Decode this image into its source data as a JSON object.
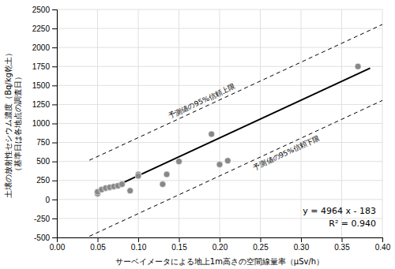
{
  "chart_data": {
    "type": "scatter",
    "xlabel": "サーベイメータによる地上1m高さの空間線量率（μSv/h）",
    "ylabel": "土壌の放射性セシウム濃度（Bq/kg乾土）\n（基準日は各地点の調査日）",
    "annotations": [
      "y = 4964 x - 183",
      "R² = 0.940",
      "予測値の95%信頼上限",
      "予測値の95%信頼下限"
    ],
    "series": [
      {
        "type": "scatter",
        "color": "#888888",
        "x": [
          0.05,
          0.05,
          0.055,
          0.06,
          0.065,
          0.07,
          0.075,
          0.08,
          0.09,
          0.1,
          0.1,
          0.13,
          0.135,
          0.15,
          0.19,
          0.2,
          0.21,
          0.37
        ],
        "values": [
          75,
          100,
          130,
          150,
          160,
          170,
          180,
          200,
          115,
          330,
          310,
          200,
          330,
          500,
          860,
          460,
          510,
          1750
        ]
      },
      {
        "type": "line",
        "color": "#000000",
        "line_style": "solid",
        "x": [
          0.075,
          0.385
        ],
        "values": [
          189.3,
          1728.14
        ]
      },
      {
        "type": "line",
        "color": "#000000",
        "line_style": "dashed",
        "x": [
          0.04,
          0.4
        ],
        "values": [
          515.56,
          2302.6
        ]
      },
      {
        "type": "line",
        "color": "#000000",
        "line_style": "dashed",
        "x": [
          0.04,
          0.4
        ],
        "values": [
          -484.44,
          1302.6
        ]
      }
    ],
    "xlim": [
      0.0,
      0.4
    ],
    "ylim": [
      -500,
      2500
    ],
    "xticks": [
      {
        "value": 0,
        "label": "0.00"
      },
      0.05,
      {
        "value": 0.1,
        "label": "0.10"
      },
      0.15,
      {
        "value": 0.2,
        "label": "0.20"
      },
      0.25,
      {
        "value": 0.3,
        "label": "0.30"
      },
      0.35,
      {
        "value": 0.4,
        "label": "0.40"
      }
    ],
    "yticks": [
      -500,
      -250,
      0,
      250,
      500,
      750,
      1000,
      1250,
      1500,
      1750,
      2000,
      2250,
      2500
    ],
    "grid": true
  }
}
